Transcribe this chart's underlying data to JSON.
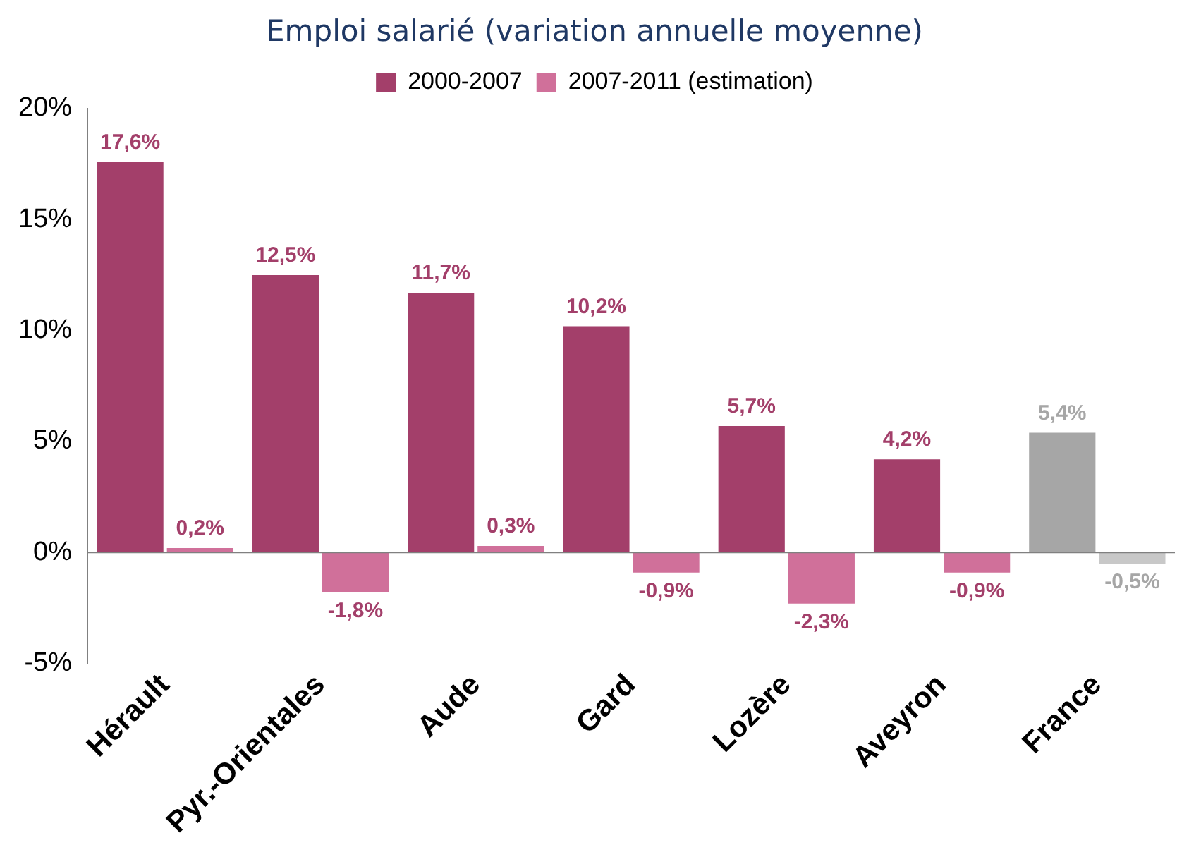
{
  "chart_data": {
    "type": "bar",
    "title": "Emploi salarié (variation annuelle moyenne)",
    "categories": [
      "Hérault",
      "Pyr.-Orientales",
      "Aude",
      "Gard",
      "Lozère",
      "Aveyron",
      "France"
    ],
    "series": [
      {
        "name": "2000-2007",
        "color": "#a33f6a",
        "colors": [
          "#a33f6a",
          "#a33f6a",
          "#a33f6a",
          "#a33f6a",
          "#a33f6a",
          "#a33f6a",
          "#a6a6a6"
        ],
        "values": [
          17.6,
          12.5,
          11.7,
          10.2,
          5.7,
          4.2,
          5.4
        ],
        "value_labels": [
          "17,6%",
          "12,5%",
          "11,7%",
          "10,2%",
          "5,7%",
          "4,2%",
          "5,4%"
        ]
      },
      {
        "name": "2007-2011 (estimation)",
        "color": "#d0709a",
        "colors": [
          "#d0709a",
          "#d0709a",
          "#d0709a",
          "#d0709a",
          "#d0709a",
          "#d0709a",
          "#c8c8c8"
        ],
        "values": [
          0.2,
          -1.8,
          0.3,
          -0.9,
          -2.3,
          -0.9,
          -0.5
        ],
        "value_labels": [
          "0,2%",
          "-1,8%",
          "0,3%",
          "-0,9%",
          "-2,3%",
          "-0,9%",
          "-0,5%"
        ]
      }
    ],
    "ylim": [
      -5,
      20
    ],
    "yticks": [
      {
        "value": -5,
        "label": "-5%"
      },
      {
        "value": 0,
        "label": "0%"
      },
      {
        "value": 5,
        "label": "5%"
      },
      {
        "value": 10,
        "label": "10%"
      },
      {
        "value": 15,
        "label": "15%"
      },
      {
        "value": 20,
        "label": "20%"
      }
    ],
    "ref_lines": [
      {
        "axis": "y",
        "value": 0,
        "color": "#808080"
      }
    ],
    "grid": false,
    "legend": "top"
  }
}
